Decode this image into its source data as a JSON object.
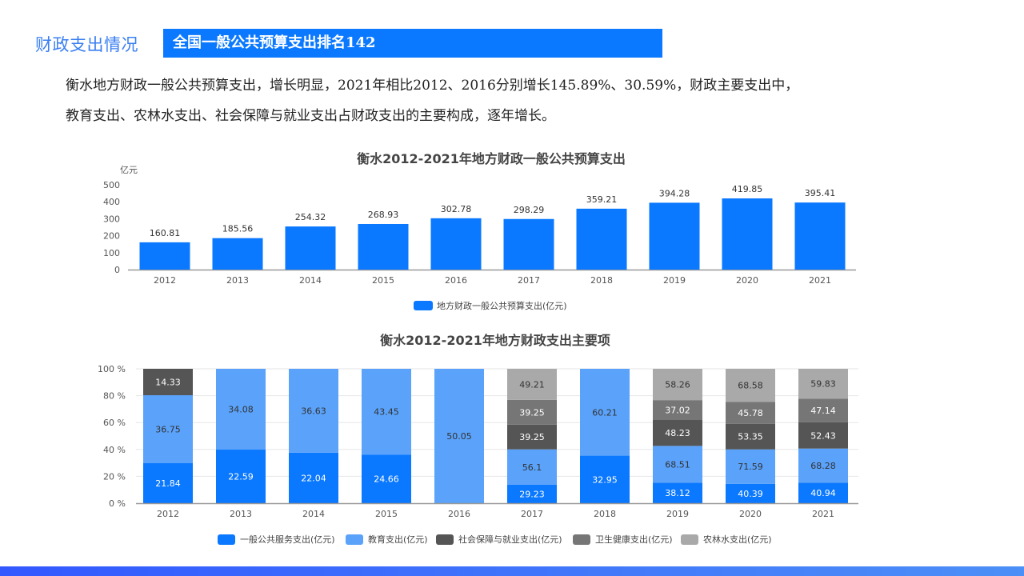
{
  "header": {
    "section_title": "财政支出情况",
    "banner": "全国一般公共预算支出排名142"
  },
  "summary": {
    "line1": "衡水地方财政一般公共预算支出，增长明显，2021年相比2012、2016分别增长145.89%、30.59%，财政主要支出中，",
    "line2": "教育支出、农林水支出、社会保障与就业支出占财政支出的主要构成，逐年增长。"
  },
  "colors": {
    "accent": "#0a78ff",
    "bottom_bar_start": "#3358ff",
    "bottom_bar_end": "#4c8ff7"
  },
  "chart_data": [
    {
      "type": "bar",
      "title": "衡水2012-2021年地方财政一般公共预算支出",
      "ylabel": "亿元",
      "ylim": [
        0,
        500
      ],
      "yticks": [
        0,
        100,
        200,
        300,
        400,
        500
      ],
      "grid": false,
      "legend": "bottom",
      "categories": [
        "2012",
        "2013",
        "2014",
        "2015",
        "2016",
        "2017",
        "2018",
        "2019",
        "2020",
        "2021"
      ],
      "series": [
        {
          "name": "地方财政一般公共预算支出(亿元)",
          "color": "#0a78ff",
          "values": [
            160.81,
            185.56,
            254.32,
            268.93,
            302.78,
            298.29,
            359.21,
            394.28,
            419.85,
            395.41
          ]
        }
      ]
    },
    {
      "type": "bar",
      "stacked": "percent",
      "title": "衡水2012-2021年地方财政支出主要项",
      "ylim": [
        0,
        100
      ],
      "yticks": [
        "0 %",
        "20 %",
        "40 %",
        "60 %",
        "80 %",
        "100 %"
      ],
      "grid": true,
      "legend": "bottom",
      "categories": [
        "2012",
        "2013",
        "2014",
        "2015",
        "2016",
        "2017",
        "2018",
        "2019",
        "2020",
        "2021"
      ],
      "series": [
        {
          "name": "一般公共服务支出(亿元)",
          "color": "#0a78ff",
          "label_color": "#ffffff",
          "values": [
            21.84,
            22.59,
            22.04,
            24.66,
            null,
            29.23,
            32.95,
            38.12,
            40.39,
            40.94
          ]
        },
        {
          "name": "教育支出(亿元)",
          "color": "#5aa2fa",
          "label_color": "#333333",
          "values": [
            36.75,
            34.08,
            36.63,
            43.45,
            50.05,
            56.1,
            60.21,
            68.51,
            71.59,
            68.28
          ]
        },
        {
          "name": "社会保障与就业支出(亿元)",
          "color": "#555555",
          "label_color": "#ffffff",
          "values": [
            14.33,
            null,
            null,
            null,
            null,
            39.25,
            null,
            48.23,
            53.35,
            52.43
          ]
        },
        {
          "name": "卫生健康支出(亿元)",
          "color": "#767676",
          "label_color": "#ffffff",
          "values": [
            null,
            null,
            null,
            null,
            null,
            39.25,
            null,
            37.02,
            45.78,
            47.14
          ]
        },
        {
          "name": "农林水支出(亿元)",
          "color": "#a9a9a9",
          "label_color": "#333333",
          "values": [
            null,
            null,
            null,
            null,
            null,
            49.21,
            null,
            58.26,
            68.58,
            59.83
          ]
        }
      ]
    }
  ]
}
